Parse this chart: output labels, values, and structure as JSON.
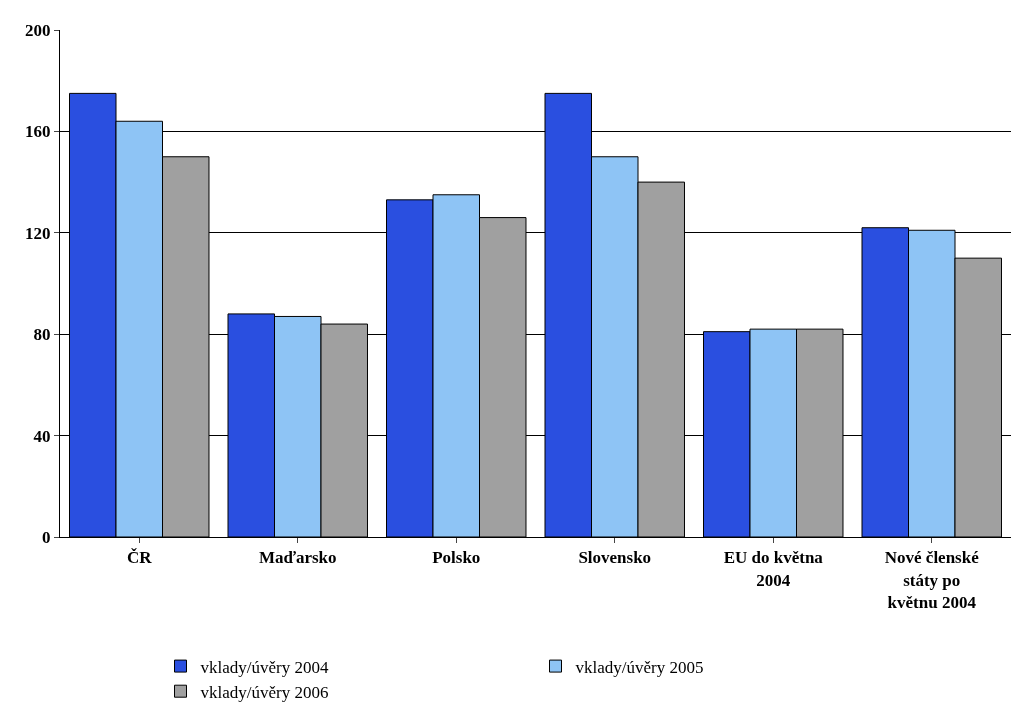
{
  "chart_data": {
    "type": "bar",
    "categories": [
      "ČR",
      "Maďarsko",
      "Polsko",
      "Slovensko",
      "EU do května 2004",
      "Nové členské státy po květnu 2004"
    ],
    "series": [
      {
        "name": "vklady/úvěry 2004",
        "color": "#2a4fe0",
        "values": [
          175,
          88,
          133,
          175,
          81,
          122
        ]
      },
      {
        "name": "vklady/úvěry 2005",
        "color": "#8ec4f5",
        "values": [
          164,
          87,
          135,
          150,
          82,
          121
        ]
      },
      {
        "name": "vklady/úvěry 2006",
        "color": "#a0a0a0",
        "values": [
          150,
          84,
          126,
          140,
          82,
          110
        ]
      }
    ],
    "ylim": [
      0,
      200
    ],
    "yticks": [
      0,
      40,
      80,
      120,
      160,
      200
    ],
    "grid": "y",
    "legend": "bottom"
  }
}
